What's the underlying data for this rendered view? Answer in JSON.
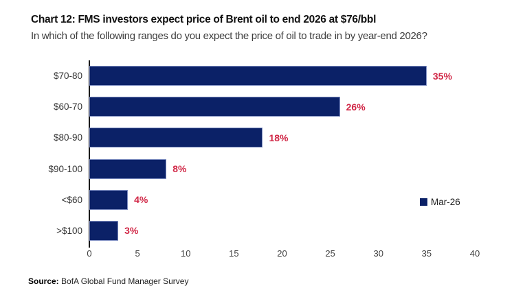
{
  "header": {
    "title": "Chart 12: FMS investors expect price of Brent oil to end 2026 at $76/bbl",
    "subtitle": "In which of the following ranges do you expect the price of oil to trade in by year-end 2026?"
  },
  "chart_data": {
    "type": "bar",
    "orientation": "horizontal",
    "title": "Chart 12: FMS investors expect price of Brent oil to end 2026 at $76/bbl",
    "subtitle": "In which of the following ranges do you expect the price of oil to trade in by year-end 2026?",
    "categories": [
      "$70-80",
      "$60-70",
      "$80-90",
      "$90-100",
      "<$60",
      ">$100"
    ],
    "series": [
      {
        "name": "Mar-26",
        "values": [
          35,
          26,
          18,
          8,
          4,
          3
        ]
      }
    ],
    "value_labels": [
      "35%",
      "26%",
      "18%",
      "8%",
      "4%",
      "3%"
    ],
    "xlim": [
      0,
      40
    ],
    "xticks": [
      0,
      5,
      10,
      15,
      20,
      25,
      30,
      35,
      40
    ],
    "grid": false,
    "legend": {
      "entries": [
        "Mar-26"
      ],
      "position": "right-middle"
    },
    "colors": {
      "bar": "#0b2167",
      "bar_border": "#7c8cc0",
      "value_label": "#d12847",
      "axis": "#1a1a1a"
    }
  },
  "footer": {
    "source_label": "Source:",
    "source_text": " BofA Global Fund Manager Survey"
  }
}
